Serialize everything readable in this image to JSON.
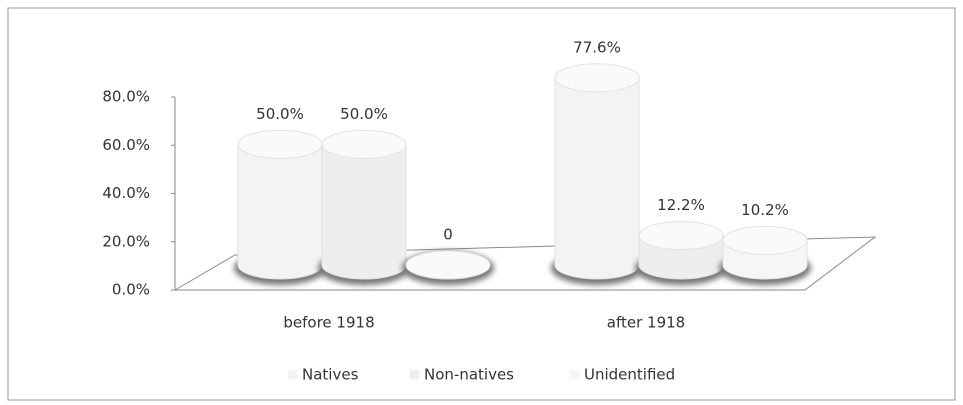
{
  "chart_data": {
    "type": "bar3d",
    "categories": [
      "before 1918",
      "after 1918"
    ],
    "series": [
      {
        "name": "Natives",
        "color": "#f3f3f3",
        "values": [
          50.0,
          77.6
        ],
        "value_labels": [
          "50.0%",
          "77.6%"
        ]
      },
      {
        "name": "Non-natives",
        "color": "#eeeeee",
        "values": [
          50.0,
          12.2
        ],
        "value_labels": [
          "50.0%",
          "12.2%"
        ]
      },
      {
        "name": "Unidentified",
        "color": "#f6f6f6",
        "values": [
          0,
          10.2
        ],
        "value_labels": [
          "0",
          "10.2%"
        ]
      }
    ],
    "ylim": [
      0,
      80
    ],
    "yticks": [
      {
        "value": 0,
        "label": "0.0%"
      },
      {
        "value": 20,
        "label": "20.0%"
      },
      {
        "value": 40,
        "label": "40.0%"
      },
      {
        "value": 60,
        "label": "60.0%"
      },
      {
        "value": 80,
        "label": "80.0%"
      }
    ],
    "legend": "bottom"
  }
}
